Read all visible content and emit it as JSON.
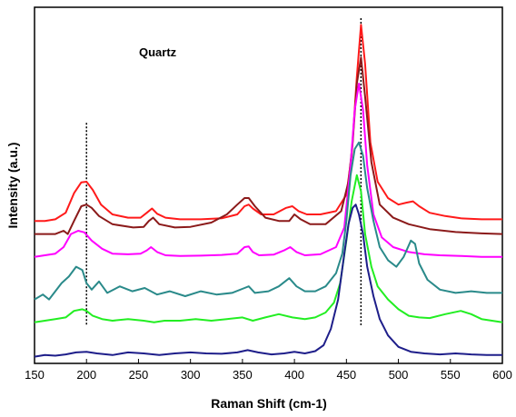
{
  "chart_data": {
    "type": "line",
    "title": "",
    "annotation": "Quartz",
    "xlabel": "Raman Shift (cm-1)",
    "ylabel": "Intensity (a.u.)",
    "xlim": [
      150,
      600
    ],
    "ylim": [
      0,
      100
    ],
    "x_ticks": [
      150,
      200,
      250,
      300,
      350,
      400,
      450,
      500,
      550,
      600
    ],
    "y_ticks_shown": false,
    "grid": false,
    "legend": "none",
    "reference_lines": [
      {
        "x": 200,
        "y_from": 6,
        "y_to": 68,
        "style": "dotted"
      },
      {
        "x": 464,
        "y_from": 6,
        "y_to": 100,
        "style": "dotted"
      }
    ],
    "series": [
      {
        "color": "#ff1a1a",
        "x": [
          150,
          160,
          170,
          180,
          188,
          195,
          200,
          206,
          214,
          225,
          240,
          252,
          258,
          263,
          268,
          276,
          290,
          310,
          330,
          345,
          352,
          356,
          360,
          368,
          380,
          392,
          398,
          404,
          412,
          425,
          440,
          450,
          455,
          460,
          464,
          468,
          473,
          480,
          490,
          500,
          508,
          514,
          520,
          530,
          545,
          560,
          580,
          600
        ],
        "y": [
          38,
          38,
          38.5,
          40.5,
          46.5,
          49.8,
          50,
          47.5,
          43,
          40,
          39,
          39,
          40.5,
          41.8,
          40.2,
          39,
          38.5,
          38.5,
          38.8,
          40,
          42.5,
          43,
          41.8,
          40,
          40,
          42,
          42.5,
          41,
          40,
          40,
          41,
          46,
          58,
          82,
          98,
          86,
          62,
          50,
          45,
          43,
          43.6,
          44,
          42.5,
          40.5,
          39.5,
          38.8,
          38.5,
          38.5
        ]
      },
      {
        "color": "#8b1a1a",
        "x": [
          150,
          160,
          170,
          178,
          182,
          188,
          195,
          200,
          205,
          212,
          225,
          245,
          255,
          260,
          264,
          270,
          285,
          300,
          320,
          335,
          345,
          352,
          356,
          362,
          372,
          385,
          395,
          400,
          406,
          415,
          430,
          445,
          452,
          456,
          460,
          464,
          468,
          474,
          482,
          495,
          510,
          530,
          555,
          580,
          600
        ],
        "y": [
          34,
          34,
          34,
          35,
          34,
          38,
          42.5,
          43,
          42,
          39.5,
          37,
          36,
          36.2,
          38,
          39,
          37,
          36,
          36.2,
          37.5,
          40,
          43,
          45,
          45,
          42.5,
          39,
          38,
          38,
          40,
          38.5,
          37,
          37,
          41,
          50,
          62,
          80,
          88,
          76,
          56,
          43,
          39,
          37,
          35.5,
          34.6,
          34.2,
          34
        ]
      },
      {
        "color": "#ff00ff",
        "x": [
          150,
          160,
          170,
          178,
          185,
          192,
          198,
          205,
          215,
          225,
          240,
          252,
          258,
          262,
          268,
          276,
          290,
          310,
          330,
          345,
          352,
          356,
          360,
          366,
          380,
          390,
          396,
          402,
          410,
          425,
          440,
          448,
          454,
          458,
          462,
          466,
          470,
          476,
          484,
          495,
          510,
          525,
          540,
          560,
          580,
          600
        ],
        "y": [
          27,
          27.5,
          28,
          30,
          34,
          35,
          34.5,
          32,
          29.5,
          28,
          27.8,
          28,
          29,
          30,
          28.5,
          27.5,
          27.3,
          27.4,
          27.6,
          28,
          30,
          30.2,
          28.5,
          27.5,
          27.7,
          29,
          30,
          28.5,
          27.5,
          27.8,
          30,
          36,
          55,
          72,
          80,
          72,
          55,
          40,
          33,
          30,
          28.5,
          27.8,
          27.5,
          27.3,
          27,
          27
        ]
      },
      {
        "color": "#2a8a8a",
        "x": [
          150,
          158,
          164,
          170,
          176,
          183,
          190,
          196,
          200,
          205,
          212,
          220,
          232,
          244,
          256,
          268,
          280,
          295,
          310,
          325,
          340,
          352,
          356,
          362,
          375,
          385,
          395,
          402,
          410,
          420,
          430,
          440,
          446,
          450,
          454,
          458,
          462,
          466,
          470,
          476,
          482,
          490,
          498,
          505,
          512,
          516,
          520,
          528,
          540,
          555,
          570,
          585,
          600
        ],
        "y": [
          14,
          15.5,
          14,
          16.5,
          19,
          21,
          24,
          23,
          19,
          17,
          19.5,
          16,
          18,
          16.5,
          17.5,
          15.5,
          16.5,
          15,
          16.5,
          15.5,
          16,
          17.5,
          18,
          16,
          16.5,
          18,
          20.5,
          18,
          16.5,
          16.5,
          18,
          22,
          28,
          38,
          52,
          60,
          62,
          58,
          48,
          38,
          30,
          26,
          24,
          27,
          32,
          31,
          25,
          20,
          17,
          16,
          16.5,
          16,
          16
        ]
      },
      {
        "color": "#22ee22",
        "x": [
          150,
          160,
          170,
          180,
          188,
          196,
          200,
          206,
          215,
          225,
          240,
          255,
          265,
          275,
          290,
          305,
          320,
          335,
          350,
          360,
          372,
          385,
          398,
          410,
          420,
          430,
          438,
          444,
          450,
          455,
          460,
          464,
          468,
          474,
          480,
          490,
          500,
          510,
          520,
          530,
          545,
          560,
          570,
          580,
          600
        ],
        "y": [
          7,
          7.5,
          8,
          8.5,
          10.5,
          11,
          10.5,
          9,
          8,
          7.5,
          8,
          7.5,
          7,
          7.5,
          7.5,
          8,
          7.5,
          8,
          8.5,
          7.5,
          8.5,
          9.5,
          8.5,
          8,
          8.5,
          10,
          13,
          19,
          32,
          44,
          52,
          47,
          34,
          24,
          18,
          14,
          11,
          9,
          8.5,
          8.3,
          9.5,
          10.5,
          9.5,
          8,
          7
        ]
      },
      {
        "color": "#1e1e8a",
        "x": [
          150,
          160,
          170,
          180,
          190,
          200,
          210,
          225,
          240,
          255,
          270,
          285,
          300,
          315,
          330,
          345,
          355,
          365,
          378,
          390,
          400,
          410,
          420,
          428,
          435,
          442,
          448,
          452,
          456,
          459,
          462,
          466,
          470,
          476,
          482,
          490,
          500,
          512,
          525,
          540,
          555,
          570,
          585,
          600
        ],
        "y": [
          -3.5,
          -3,
          -3.2,
          -2.8,
          -2.2,
          -2,
          -2.5,
          -3,
          -2.2,
          -2.5,
          -3,
          -2.5,
          -2.2,
          -2.5,
          -2.6,
          -2.2,
          -1.5,
          -2.2,
          -2.8,
          -2.5,
          -2,
          -2.5,
          -1.8,
          0,
          5,
          14,
          28,
          37,
          42,
          43,
          40,
          34,
          24,
          15,
          8,
          3,
          -0.5,
          -2,
          -2.5,
          -2.8,
          -2.5,
          -2.8,
          -3,
          -3
        ]
      }
    ]
  }
}
